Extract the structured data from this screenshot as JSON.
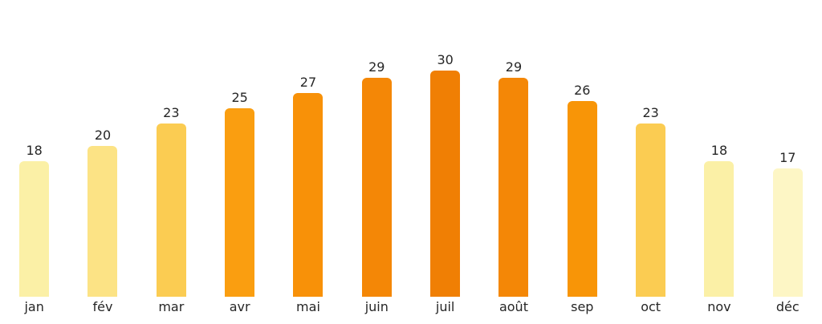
{
  "chart_data": {
    "type": "bar",
    "categories": [
      "jan",
      "fév",
      "mar",
      "avr",
      "mai",
      "juin",
      "juil",
      "août",
      "sep",
      "oct",
      "nov",
      "déc"
    ],
    "values": [
      18,
      20,
      23,
      25,
      27,
      29,
      30,
      29,
      26,
      23,
      18,
      17
    ],
    "bar_colors": [
      "#FBF0A6",
      "#FCE385",
      "#FBCC52",
      "#FA9E10",
      "#F89108",
      "#F48706",
      "#F07F04",
      "#F48706",
      "#F89507",
      "#FBCC52",
      "#FBF0A6",
      "#FDF6C5"
    ],
    "title": "",
    "xlabel": "",
    "ylabel": "",
    "ylim": [
      0,
      33
    ],
    "grid": false,
    "legend": null,
    "value_labels_shown": true,
    "axis_lines_shown": false
  },
  "styles": {
    "background_color": "#ffffff",
    "label_text_color": "#262626"
  }
}
